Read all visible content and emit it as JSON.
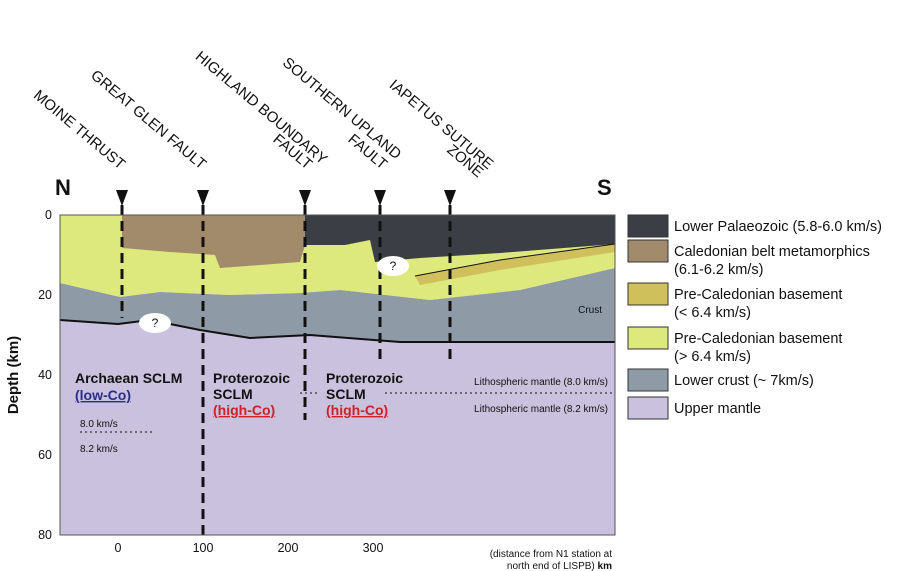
{
  "axis": {
    "y_label": "Depth (km)",
    "y_ticks": [
      "0",
      "20",
      "40",
      "60",
      "80"
    ],
    "x_ticks": [
      "0",
      "100",
      "200",
      "300"
    ],
    "x_note": [
      "(distance from N1 station at",
      "north end of LISPB)"
    ],
    "x_unit": "km"
  },
  "directions": {
    "north": "N",
    "south": "S"
  },
  "faults": [
    [
      "MOINE THRUST"
    ],
    [
      "GREAT GLEN FAULT"
    ],
    [
      "HIGHLAND BOUNDARY",
      "FAULT"
    ],
    [
      "SOUTHERN UPLAND",
      "FAULT"
    ],
    [
      "IAPETUS SUTURE",
      "ZONE"
    ]
  ],
  "regions": [
    {
      "lines": [
        "Archaean SCLM"
      ],
      "tag": "(low-Co)"
    },
    {
      "lines": [
        "Proterozoic",
        "SCLM"
      ],
      "tag": "(high-Co)"
    },
    {
      "lines": [
        "Proterozoic",
        "SCLM"
      ],
      "tag": "(high-Co)"
    }
  ],
  "annotations": {
    "crust": "Crust",
    "mantle_upper": "Lithospheric mantle (8.0 km/s)",
    "mantle_lower": "Lithospheric mantle (8.2 km/s)",
    "vel_upper": "8.0 km/s",
    "vel_lower": "8.2 km/s",
    "unknown": "?"
  },
  "legend": [
    {
      "lines": [
        "Lower Palaeozoic (5.8-6.0 km/s)"
      ],
      "color": "#3b3e44"
    },
    {
      "lines": [
        "Caledonian belt metamorphics",
        "(6.1-6.2 km/s)"
      ],
      "color": "#a28b6b"
    },
    {
      "lines": [
        "Pre-Caledonian basement",
        "(< 6.4 km/s)"
      ],
      "color": "#cfc05c"
    },
    {
      "lines": [
        "Pre-Caledonian basement",
        "(> 6.4 km/s)"
      ],
      "color": "#dde97c"
    },
    {
      "lines": [
        "Lower crust (~ 7km/s)"
      ],
      "color": "#8e9ba7"
    },
    {
      "lines": [
        "Upper mantle"
      ],
      "color": "#c9c1dd"
    }
  ]
}
